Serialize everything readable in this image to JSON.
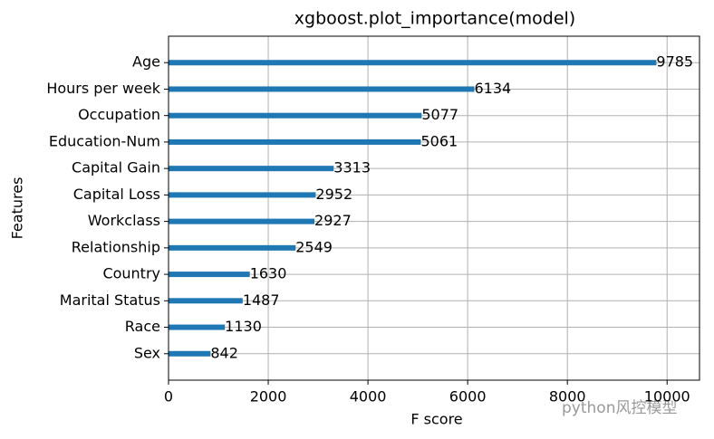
{
  "chart_data": {
    "type": "barh",
    "title": "xgboost.plot_importance(model)",
    "xlabel": "F score",
    "ylabel": "Features",
    "categories": [
      "Age",
      "Hours per week",
      "Occupation",
      "Education-Num",
      "Capital Gain",
      "Capital Loss",
      "Workclass",
      "Relationship",
      "Country",
      "Marital Status",
      "Race",
      "Sex"
    ],
    "values": [
      9785,
      6134,
      5077,
      5061,
      3313,
      2952,
      2927,
      2549,
      1630,
      1487,
      1130,
      842
    ],
    "color": "#1f77b4",
    "xlim": [
      0,
      10650
    ],
    "xticks": [
      0,
      2000,
      4000,
      6000,
      8000,
      10000
    ],
    "grid": true
  },
  "watermark": "python风控模型"
}
